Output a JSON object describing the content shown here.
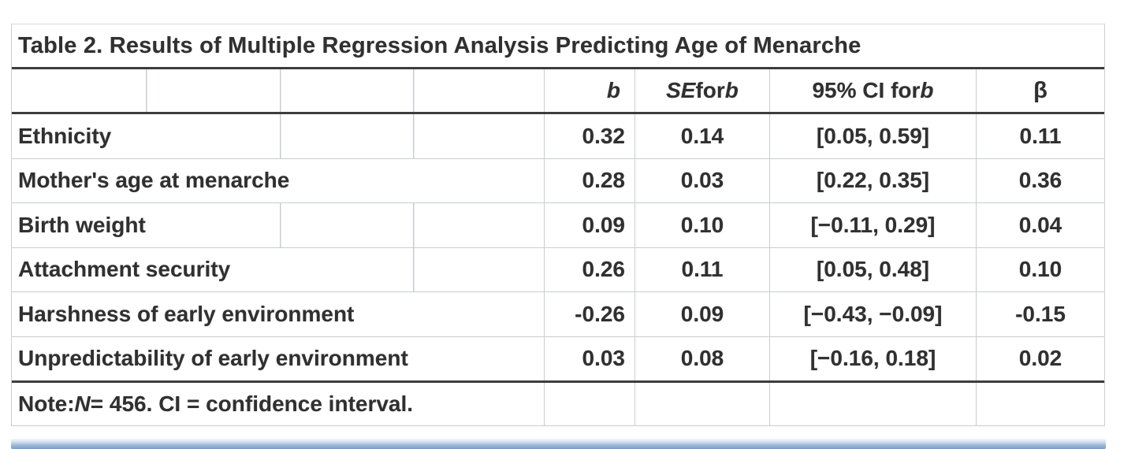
{
  "table": {
    "title": "Table 2. Results of Multiple Regression Analysis Predicting Age of Menarche",
    "header": {
      "b": "b",
      "se_parts": [
        "SE",
        " for ",
        "b"
      ],
      "ci_parts": [
        "95% CI for ",
        "b"
      ],
      "beta": "β"
    },
    "rows": [
      {
        "label": "Ethnicity",
        "b": "0.32",
        "se": "0.14",
        "ci": "[0.05, 0.59]",
        "beta": "0.11"
      },
      {
        "label": "Mother's age at menarche",
        "b": "0.28",
        "se": "0.03",
        "ci": "[0.22, 0.35]",
        "beta": "0.36"
      },
      {
        "label": "Birth weight",
        "b": "0.09",
        "se": "0.10",
        "ci": "[−0.11, 0.29]",
        "beta": "0.04"
      },
      {
        "label": "Attachment security",
        "b": "0.26",
        "se": "0.11",
        "ci": "[0.05, 0.48]",
        "beta": "0.10"
      },
      {
        "label": "Harshness of early environment",
        "b": "-0.26",
        "se": "0.09",
        "ci": "[−0.43, −0.09]",
        "beta": "-0.15"
      },
      {
        "label": "Unpredictability of early environment",
        "b": "0.03",
        "se": "0.08",
        "ci": "[−0.16, 0.18]",
        "beta": "0.02"
      }
    ],
    "note_parts": [
      "Note: ",
      "N",
      " = 456. CI = confidence interval."
    ]
  },
  "colors": {
    "dark_rule": "#3d3d3d",
    "light_gridline": "#c9cdd0",
    "text": "#303030",
    "blue_bar_top": "#d5e1f0",
    "blue_bar_bottom": "#7b9cc6"
  }
}
